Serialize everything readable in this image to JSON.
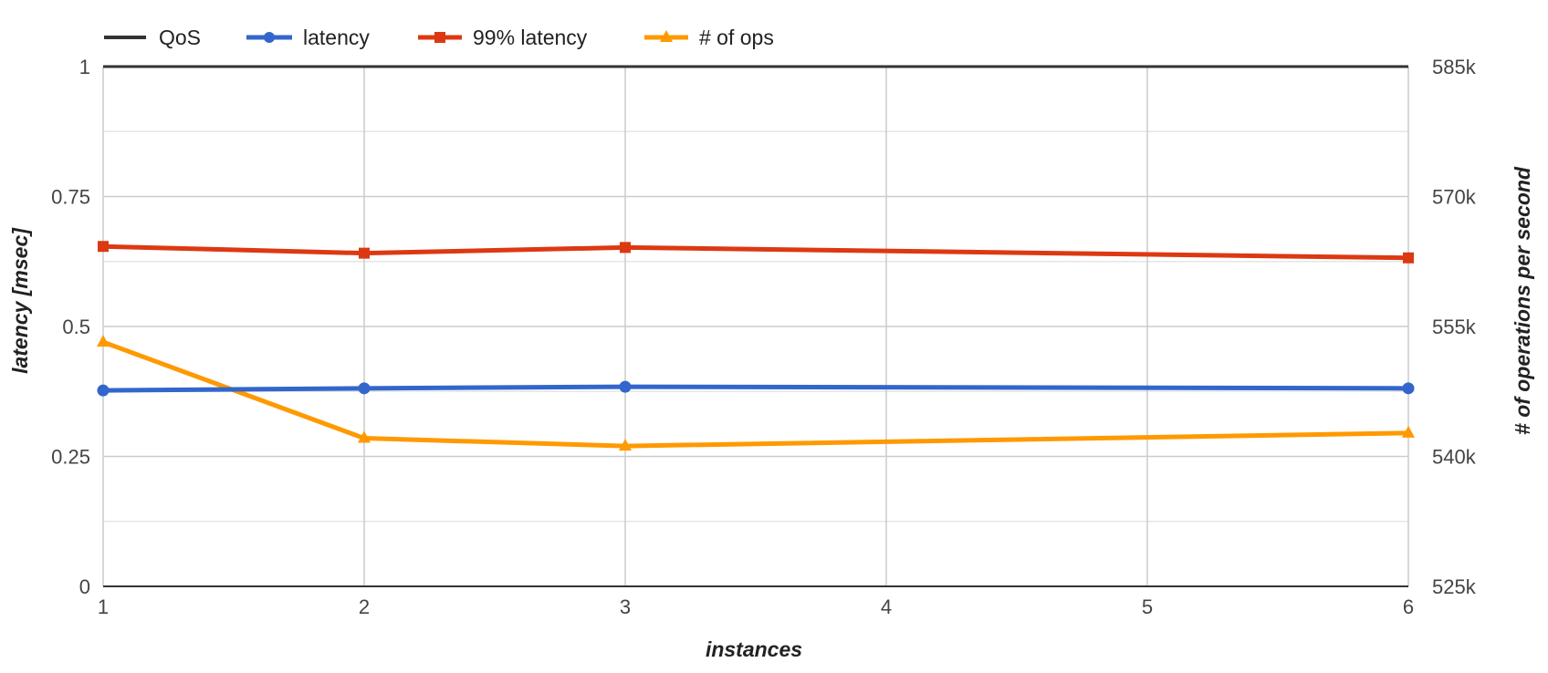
{
  "chart_data": {
    "type": "line",
    "x": [
      1,
      2,
      3,
      4,
      5,
      6
    ],
    "x_tick_labels": [
      "1",
      "2",
      "3",
      "4",
      "5",
      "6"
    ],
    "xlabel": "instances",
    "ylabel_left": "latency [msec]",
    "ylabel_right": "# of operations per second",
    "ylim_left": [
      0,
      1
    ],
    "ylim_right": [
      525000,
      585000
    ],
    "left_tick_labels": [
      "0",
      "0.25",
      "0.5",
      "0.75",
      "1"
    ],
    "right_tick_labels": [
      "525k",
      "540k",
      "555k",
      "570k",
      "585k"
    ],
    "grid": true,
    "legend_position": "top-left",
    "series": [
      {
        "name": "QoS",
        "axis": "left",
        "color": "#333333",
        "marker": "none",
        "values": [
          1,
          1,
          1,
          1,
          1,
          1
        ]
      },
      {
        "name": "latency",
        "axis": "left",
        "color": "#3366cc",
        "marker": "circle",
        "values": [
          0.377,
          0.381,
          0.384,
          null,
          null,
          0.381
        ]
      },
      {
        "name": "99% latency",
        "axis": "left",
        "color": "#dc3912",
        "marker": "square",
        "values": [
          0.654,
          0.641,
          0.652,
          null,
          null,
          0.632
        ]
      },
      {
        "name": "# of ops",
        "axis": "right",
        "color": "#ff9900",
        "marker": "triangle",
        "values": [
          553200,
          542100,
          541200,
          null,
          null,
          542700
        ]
      }
    ]
  }
}
